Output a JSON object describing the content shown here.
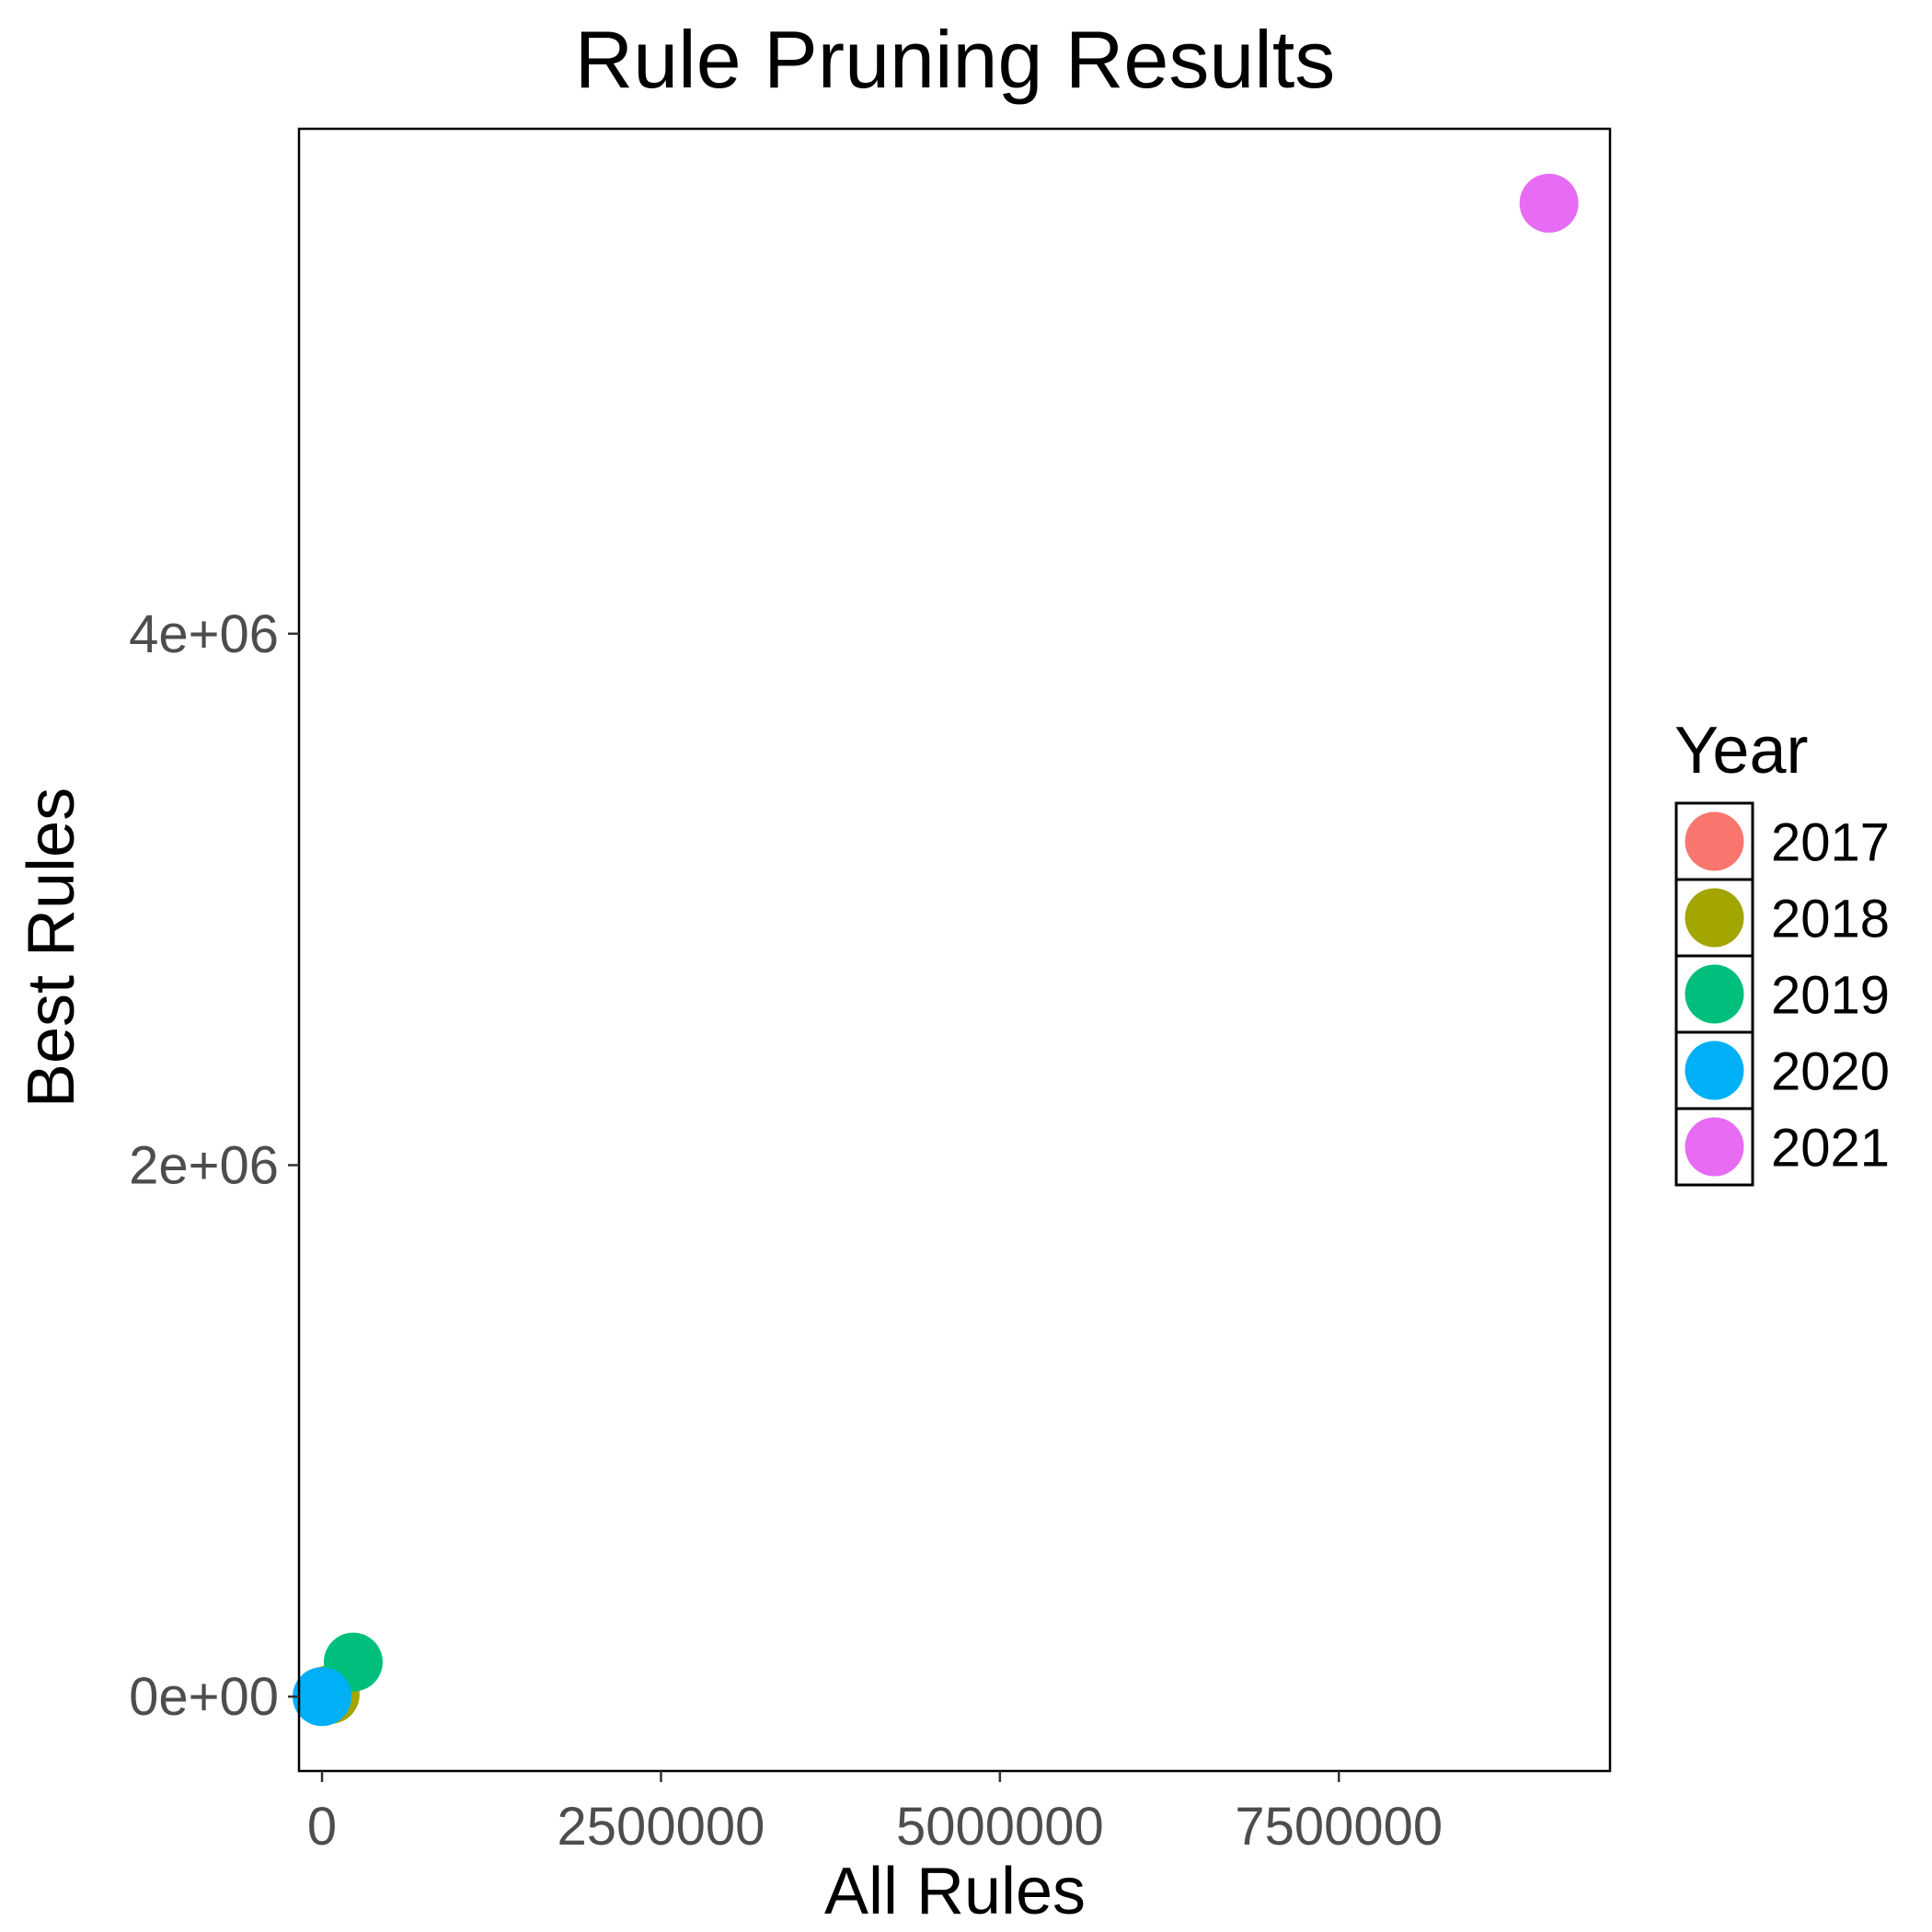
{
  "chart_data": {
    "type": "scatter",
    "title": "Rule Pruning Results",
    "xlabel": "All Rules",
    "ylabel": "Best Rules",
    "xlim": [
      -170000,
      9500000
    ],
    "ylim": [
      -280000,
      5900000
    ],
    "x_ticks": [
      0,
      2500000,
      5000000,
      7500000
    ],
    "x_tick_labels": [
      "0",
      "2500000",
      "5000000",
      "7500000"
    ],
    "y_ticks": [
      0,
      2000000,
      4000000
    ],
    "y_tick_labels": [
      "0e+00",
      "2e+06",
      "4e+06"
    ],
    "grid": true,
    "legend_title": "Year",
    "legend_position": "right",
    "series": [
      {
        "name": "2017",
        "color": "#F8766D",
        "x": 5000,
        "y": 1000
      },
      {
        "name": "2018",
        "color": "#A3A500",
        "x": 60000,
        "y": 8000
      },
      {
        "name": "2019",
        "color": "#00BF7D",
        "x": 230000,
        "y": 130000
      },
      {
        "name": "2020",
        "color": "#00B0F6",
        "x": 0,
        "y": 0
      },
      {
        "name": "2021",
        "color": "#E76BF3",
        "x": 9050000,
        "y": 5620000
      }
    ]
  }
}
